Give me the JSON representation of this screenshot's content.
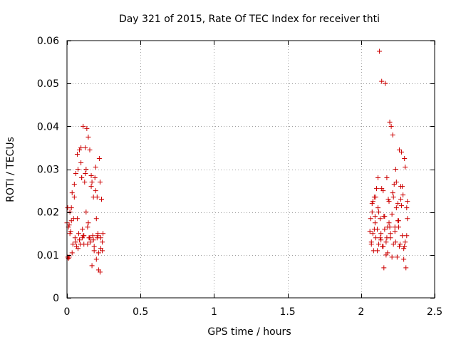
{
  "chart_data": {
    "type": "scatter",
    "title": "Day 321 of 2015, Rate Of TEC Index for receiver thti",
    "xlabel": "GPS time / hours",
    "ylabel": "ROTI / TECUs",
    "xlim": [
      0,
      2.5
    ],
    "ylim": [
      0,
      0.06
    ],
    "grid": true,
    "x_ticks": [
      0,
      0.5,
      1,
      1.5,
      2,
      2.5
    ],
    "x_tick_labels": [
      "0",
      "0.5",
      "1",
      "1.5",
      "2",
      "2.5"
    ],
    "y_ticks": [
      0,
      0.01,
      0.02,
      0.03,
      0.04,
      0.05,
      0.06
    ],
    "y_tick_labels": [
      "0",
      "0.01",
      "0.02",
      "0.03",
      "0.04",
      "0.05",
      "0.06"
    ],
    "series": [
      {
        "name": "ROTI",
        "color": "#cc0000",
        "marker": "plus",
        "x": [
          0.0,
          0.005,
          0.01,
          0.015,
          0.02,
          0.025,
          0.03,
          0.035,
          0.04,
          0.045,
          0.05,
          0.055,
          0.06,
          0.065,
          0.07,
          0.075,
          0.08,
          0.085,
          0.09,
          0.095,
          0.1,
          0.105,
          0.11,
          0.115,
          0.12,
          0.125,
          0.13,
          0.135,
          0.14,
          0.145,
          0.15,
          0.155,
          0.16,
          0.165,
          0.17,
          0.175,
          0.18,
          0.185,
          0.19,
          0.195,
          0.2,
          0.205,
          0.21,
          0.215,
          0.22,
          0.225,
          0.23,
          0.235,
          0.24,
          0.245,
          0.01,
          0.02,
          0.03,
          0.06,
          0.075,
          0.095,
          0.105,
          0.115,
          0.125,
          0.145,
          0.155,
          0.165,
          0.185,
          0.195,
          0.205,
          0.215,
          0.225,
          0.235,
          0.24,
          0.005,
          0.015,
          0.035,
          0.05,
          0.07,
          0.085,
          0.1,
          0.11,
          0.13,
          0.14,
          0.17,
          0.18,
          0.2,
          0.21,
          0.23,
          2.06,
          2.065,
          2.07,
          2.075,
          2.08,
          2.085,
          2.09,
          2.095,
          2.1,
          2.105,
          2.11,
          2.115,
          2.12,
          2.125,
          2.13,
          2.135,
          2.14,
          2.145,
          2.15,
          2.155,
          2.16,
          2.165,
          2.17,
          2.175,
          2.18,
          2.185,
          2.19,
          2.195,
          2.2,
          2.205,
          2.21,
          2.215,
          2.22,
          2.225,
          2.23,
          2.235,
          2.24,
          2.245,
          2.25,
          2.255,
          2.26,
          2.265,
          2.27,
          2.275,
          2.28,
          2.285,
          2.29,
          2.295,
          2.3,
          2.305,
          2.31,
          2.315,
          2.07,
          2.08,
          2.09,
          2.1,
          2.11,
          2.12,
          2.13,
          2.14,
          2.15,
          2.16,
          2.17,
          2.18,
          2.19,
          2.2,
          2.21,
          2.22,
          2.23,
          2.24,
          2.25,
          2.26,
          2.27,
          2.28,
          2.29,
          2.3,
          2.31,
          2.075,
          2.095,
          2.115,
          2.135,
          2.155,
          2.175,
          2.195,
          2.215,
          2.235,
          2.255,
          2.275,
          2.295,
          2.315
        ],
        "y": [
          0.0175,
          0.021,
          0.0165,
          0.0095,
          0.02,
          0.0155,
          0.018,
          0.0245,
          0.0125,
          0.0185,
          0.0265,
          0.014,
          0.029,
          0.012,
          0.0335,
          0.03,
          0.015,
          0.0345,
          0.0125,
          0.0315,
          0.028,
          0.014,
          0.04,
          0.0145,
          0.027,
          0.035,
          0.02,
          0.0395,
          0.0165,
          0.0375,
          0.014,
          0.0345,
          0.013,
          0.0285,
          0.0075,
          0.0145,
          0.0235,
          0.011,
          0.028,
          0.0305,
          0.009,
          0.0235,
          0.015,
          0.0065,
          0.0325,
          0.006,
          0.014,
          0.023,
          0.011,
          0.015,
          0.0092,
          0.015,
          0.021,
          0.013,
          0.0115,
          0.035,
          0.016,
          0.0125,
          0.029,
          0.0175,
          0.014,
          0.026,
          0.012,
          0.025,
          0.014,
          0.0105,
          0.027,
          0.023,
          0.013,
          0.0095,
          0.017,
          0.0105,
          0.0235,
          0.0185,
          0.0135,
          0.028,
          0.0145,
          0.03,
          0.0125,
          0.027,
          0.0135,
          0.0185,
          0.0145,
          0.0115,
          0.0155,
          0.0185,
          0.0125,
          0.022,
          0.015,
          0.011,
          0.0235,
          0.019,
          0.014,
          0.0255,
          0.016,
          0.028,
          0.0125,
          0.0575,
          0.0185,
          0.015,
          0.0505,
          0.012,
          0.025,
          0.007,
          0.016,
          0.05,
          0.013,
          0.028,
          0.0105,
          0.023,
          0.0175,
          0.041,
          0.014,
          0.04,
          0.0195,
          0.038,
          0.0125,
          0.0265,
          0.0155,
          0.03,
          0.021,
          0.0095,
          0.022,
          0.018,
          0.0345,
          0.0125,
          0.026,
          0.034,
          0.0145,
          0.024,
          0.009,
          0.0325,
          0.013,
          0.007,
          0.021,
          0.0185,
          0.013,
          0.0225,
          0.016,
          0.0235,
          0.011,
          0.02,
          0.014,
          0.0255,
          0.012,
          0.019,
          0.01,
          0.0165,
          0.0225,
          0.015,
          0.0095,
          0.0235,
          0.0165,
          0.027,
          0.018,
          0.012,
          0.023,
          0.026,
          0.0115,
          0.0305,
          0.0145,
          0.02,
          0.0175,
          0.021,
          0.0135,
          0.019,
          0.014,
          0.0165,
          0.0245,
          0.013,
          0.0165,
          0.0215,
          0.012,
          0.0225
        ]
      }
    ]
  }
}
